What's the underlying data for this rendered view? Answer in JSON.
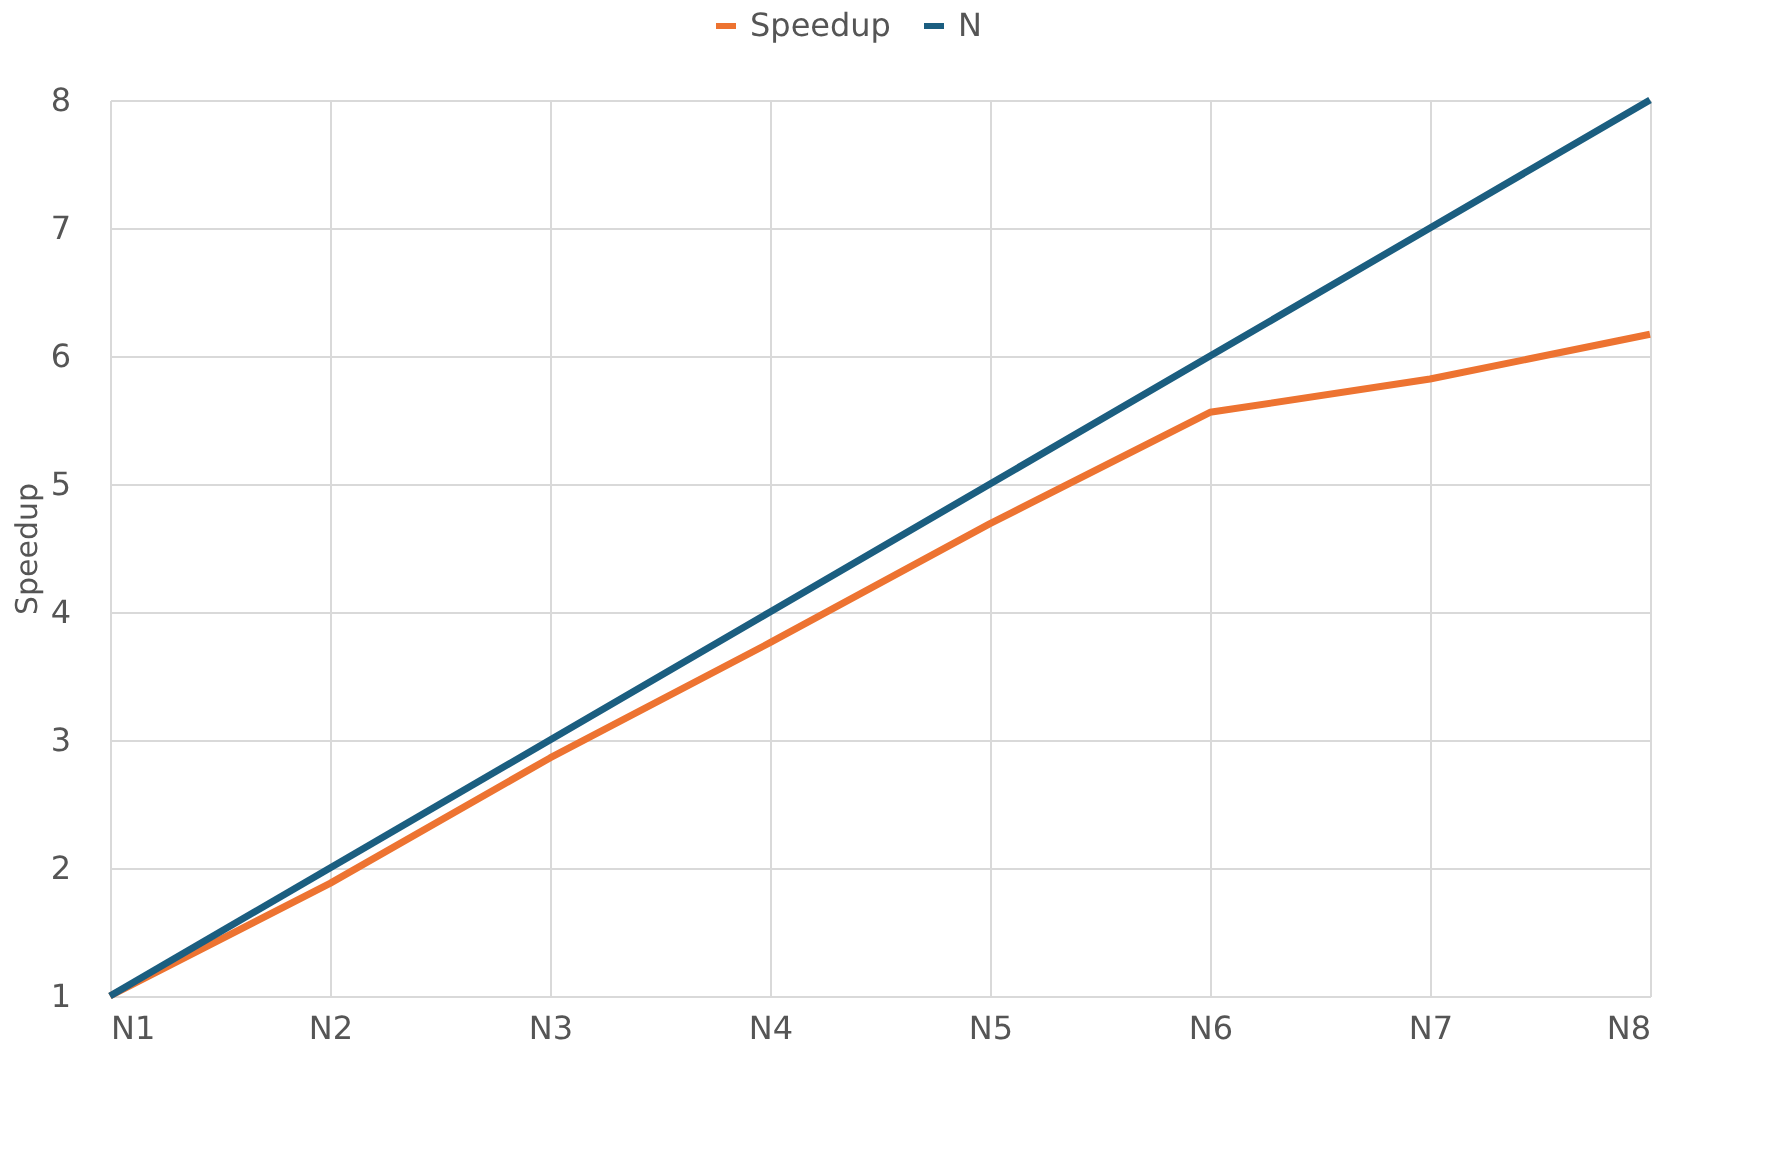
{
  "chart_data": {
    "type": "line",
    "ylabel": "Speedup",
    "categories": [
      "N1",
      "N2",
      "N3",
      "N4",
      "N5",
      "N6",
      "N7",
      "N8"
    ],
    "series": [
      {
        "name": "Speedup",
        "color": "#ed7331",
        "values": [
          1,
          1.88,
          2.86,
          3.76,
          4.69,
          5.56,
          5.82,
          6.17
        ]
      },
      {
        "name": "N",
        "color": "#1b5e80",
        "values": [
          1,
          2,
          3,
          4,
          5,
          6,
          7,
          8
        ]
      }
    ],
    "ylim": [
      1,
      8
    ],
    "yticks": [
      1,
      2,
      3,
      4,
      5,
      6,
      7,
      8
    ],
    "grid": true,
    "legend": "top",
    "marker": "none",
    "line_style": "solid"
  }
}
